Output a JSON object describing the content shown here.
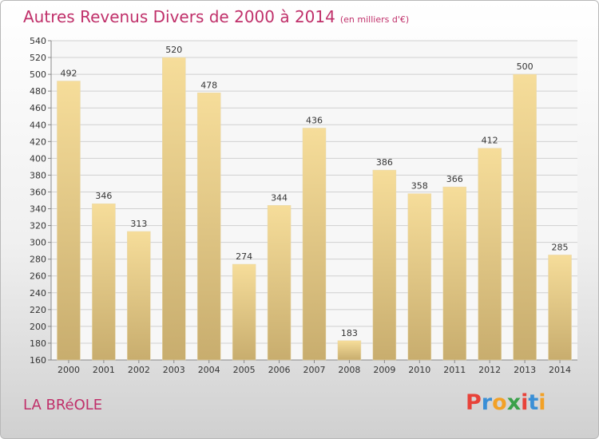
{
  "header": {
    "title": "Autres Revenus Divers de 2000 à 2014",
    "unit": "(en milliers d'€)"
  },
  "footer": {
    "place": "LA BRéOLE",
    "logo_letters": [
      {
        "ch": "P",
        "color": "#e8433a"
      },
      {
        "ch": "r",
        "color": "#3a8fd6"
      },
      {
        "ch": "o",
        "color": "#f2a127"
      },
      {
        "ch": "x",
        "color": "#3aa14a"
      },
      {
        "ch": "i",
        "color": "#e8433a"
      },
      {
        "ch": "t",
        "color": "#3a8fd6"
      },
      {
        "ch": "i",
        "color": "#f2a127"
      }
    ]
  },
  "colors": {
    "accent": "#c0306a",
    "bar_light": "#f6dd9a",
    "bar_dark": "#c8ad6e",
    "grid": "#d0d0d0"
  },
  "chart_data": {
    "type": "bar",
    "title": "Autres Revenus Divers de 2000 à 2014",
    "subtitle": "(en milliers d'€)",
    "categories": [
      "2000",
      "2001",
      "2002",
      "2003",
      "2004",
      "2005",
      "2006",
      "2007",
      "2008",
      "2009",
      "2010",
      "2011",
      "2012",
      "2013",
      "2014"
    ],
    "values": [
      492,
      346,
      313,
      520,
      478,
      274,
      344,
      436,
      183,
      386,
      358,
      366,
      412,
      500,
      285
    ],
    "ylim": [
      160,
      540
    ],
    "ytick_step": 20,
    "grid": true,
    "xlabel": "",
    "ylabel": ""
  }
}
